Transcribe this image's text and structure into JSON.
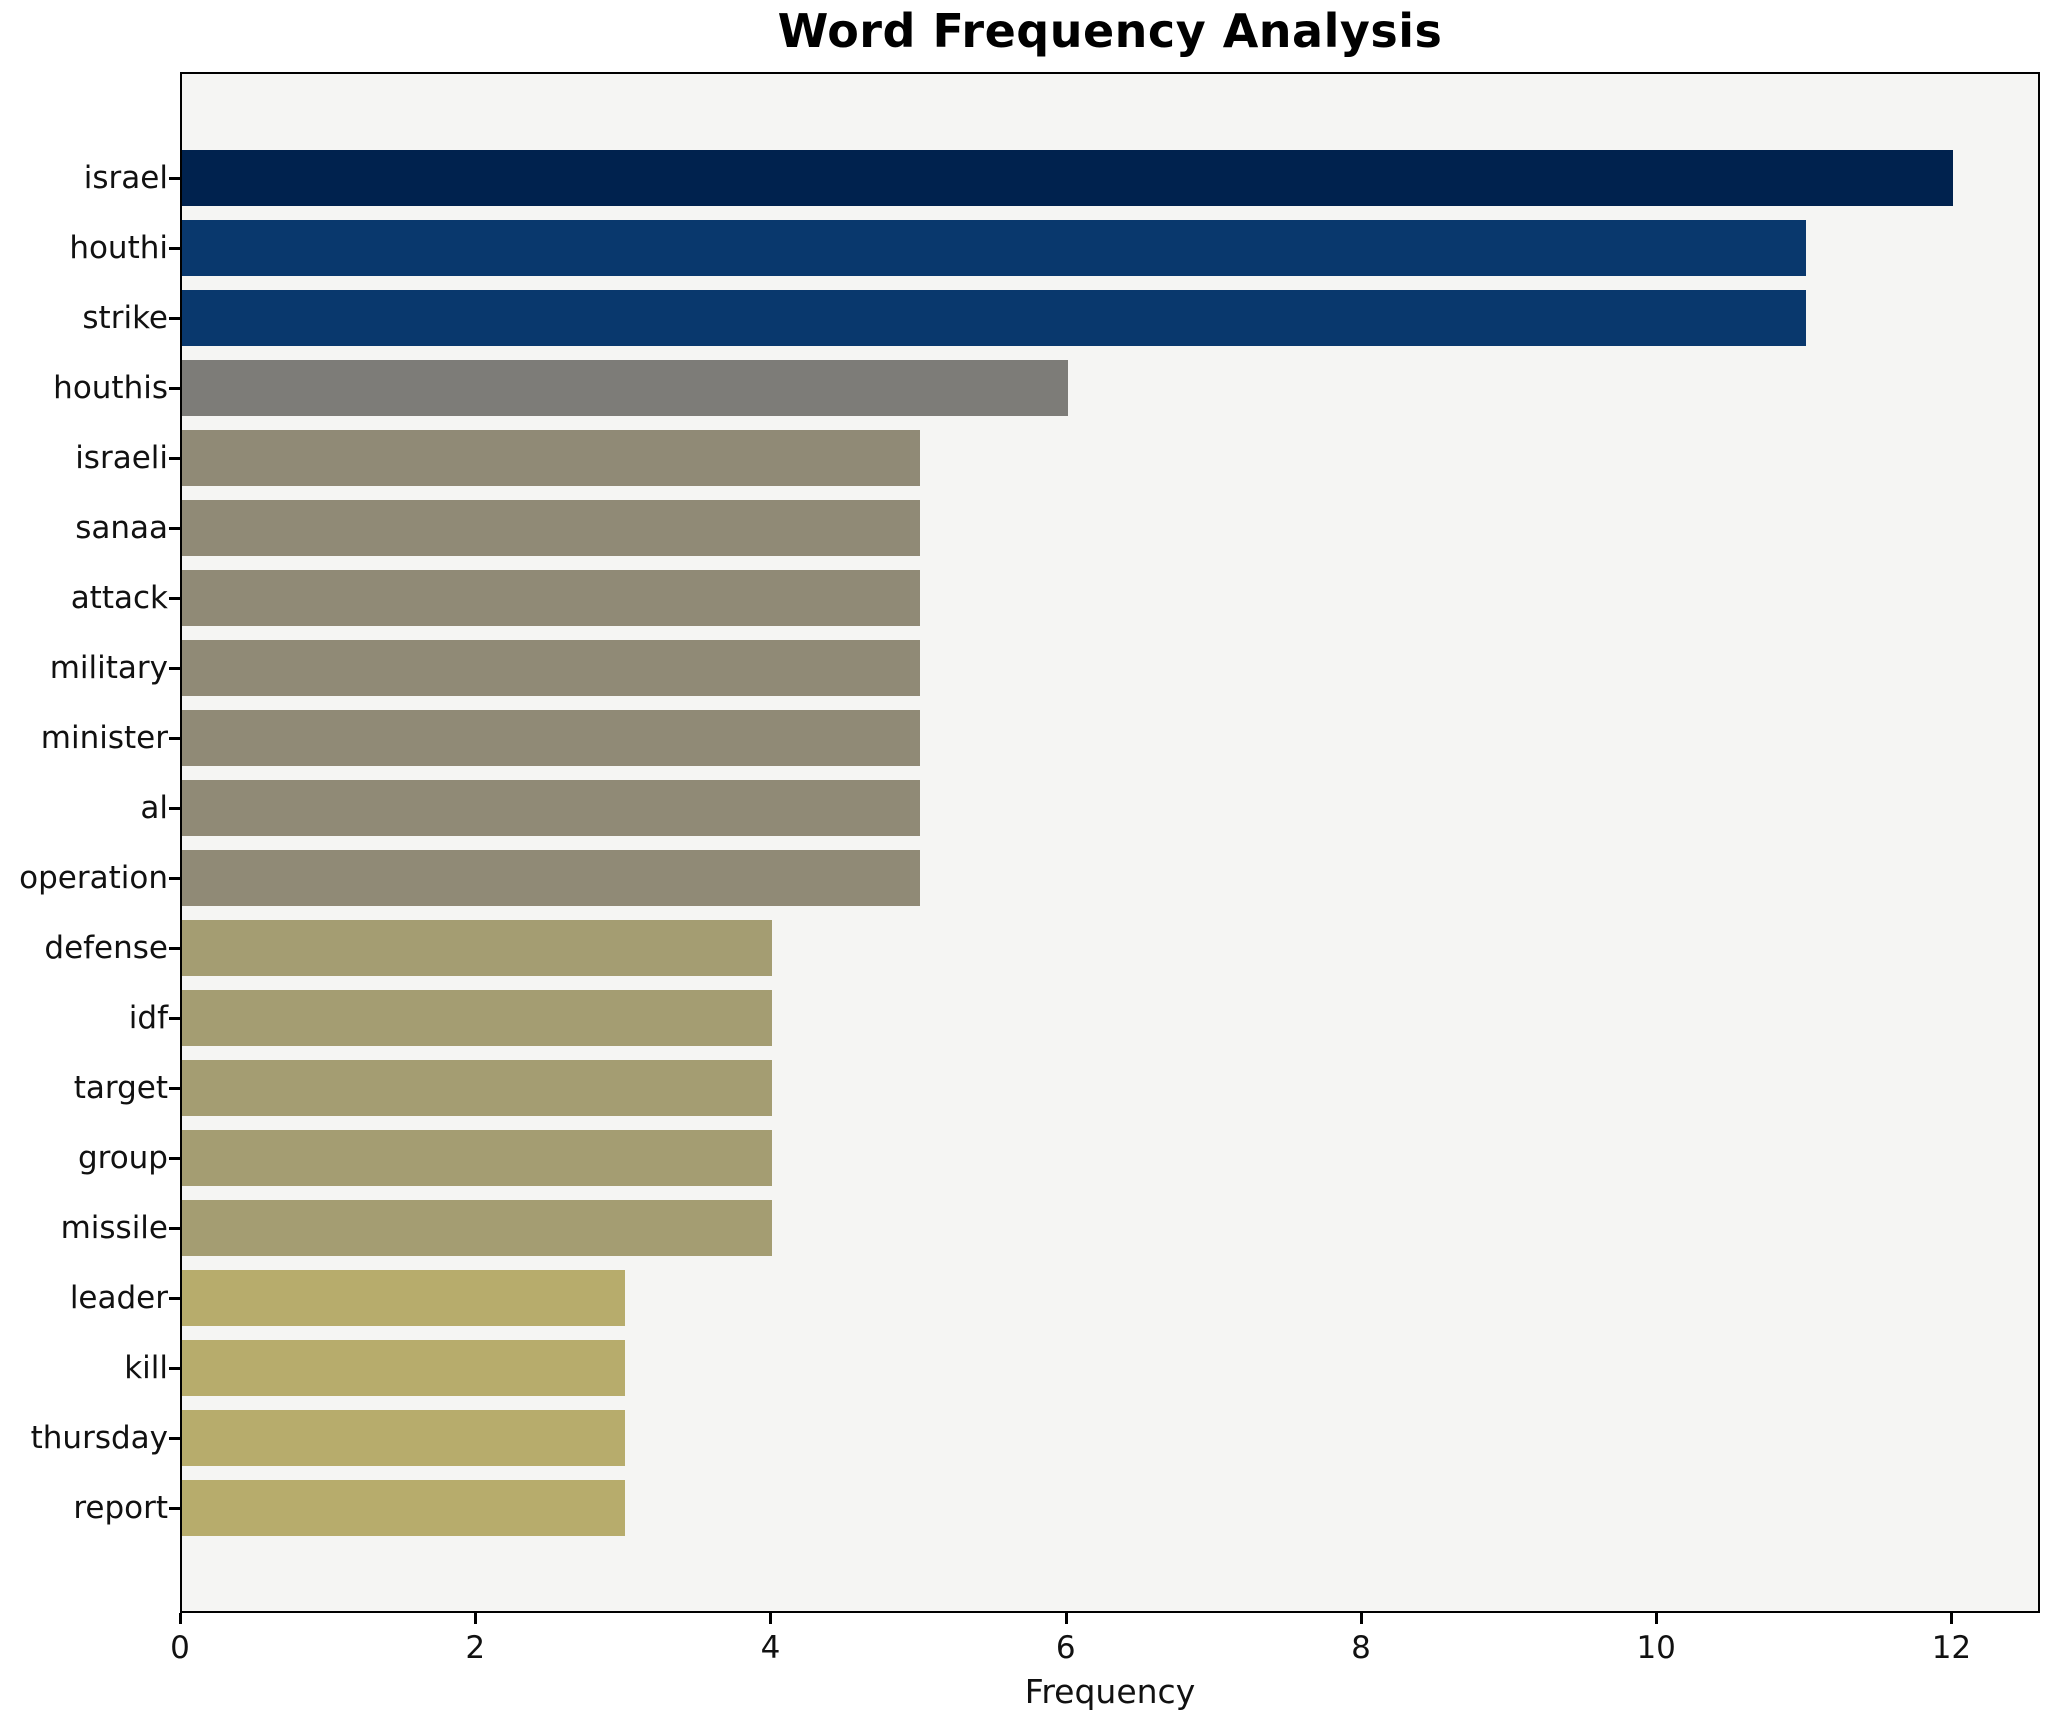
{
  "title": "Word Frequency Analysis",
  "chart_data": {
    "type": "bar",
    "orientation": "horizontal",
    "title": "Word Frequency Analysis",
    "xlabel": "Frequency",
    "ylabel": "",
    "categories": [
      "israel",
      "houthi",
      "strike",
      "houthis",
      "israeli",
      "sanaa",
      "attack",
      "military",
      "minister",
      "al",
      "operation",
      "defense",
      "idf",
      "target",
      "group",
      "missile",
      "leader",
      "kill",
      "thursday",
      "report"
    ],
    "values": [
      12,
      11,
      11,
      6,
      5,
      5,
      5,
      5,
      5,
      5,
      5,
      4,
      4,
      4,
      4,
      4,
      3,
      3,
      3,
      3
    ],
    "bar_colors": [
      "#00224e",
      "#09386d",
      "#09386d",
      "#7d7c78",
      "#908a76",
      "#908a76",
      "#908a76",
      "#908a76",
      "#908a76",
      "#908a76",
      "#908a76",
      "#a49d72",
      "#a49d72",
      "#a49d72",
      "#a49d72",
      "#a49d72",
      "#b7ac6c",
      "#b7ac6c",
      "#b7ac6c",
      "#b7ac6c"
    ],
    "xlim": [
      0,
      12.6
    ],
    "x_ticks": [
      0,
      2,
      4,
      6,
      8,
      10,
      12
    ],
    "grid": false,
    "legend": null,
    "plot_bg": "#f5f5f3",
    "figure_bg": "#ffffff",
    "spine_color": "#000000"
  }
}
